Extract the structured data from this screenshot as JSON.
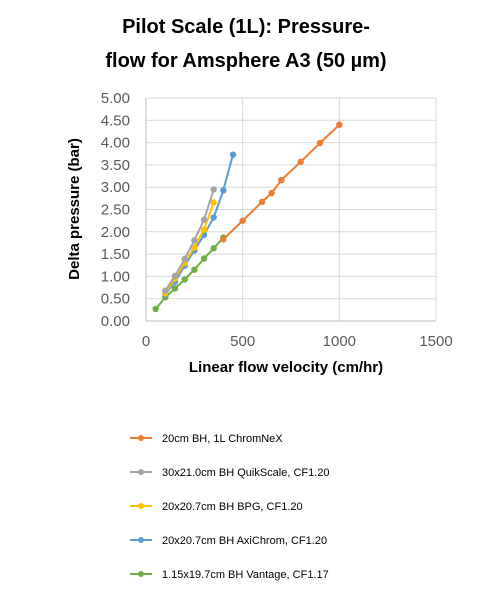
{
  "chart_data": {
    "type": "line",
    "title": [
      "Pilot Scale (1L): Pressure-",
      "flow for Amsphere A3 (50 µm)"
    ],
    "xlabel": "Linear flow velocity (cm/hr)",
    "ylabel": "Delta pressure (bar)",
    "xlim": [
      0,
      1500
    ],
    "ylim": [
      0,
      5
    ],
    "xticks": [
      "0",
      "500",
      "1000",
      "1500"
    ],
    "yticks": [
      "0.00",
      "0.50",
      "1.00",
      "1.50",
      "2.00",
      "2.50",
      "3.00",
      "3.50",
      "4.00",
      "4.50",
      "5.00"
    ],
    "grid": true,
    "legend_position": "bottom",
    "series": [
      {
        "name": "20cm BH, 1L ChromNeX",
        "color": "#ED7D31",
        "points": [
          [
            400,
            1.83
          ],
          [
            500,
            2.25
          ],
          [
            600,
            2.67
          ],
          [
            650,
            2.87
          ],
          [
            700,
            3.16
          ],
          [
            800,
            3.57
          ],
          [
            900,
            3.99
          ],
          [
            1000,
            4.4
          ]
        ]
      },
      {
        "name": "30x21.0cm BH QuikScale, CF1.20",
        "color": "#A5A5A5",
        "points": [
          [
            100,
            0.68
          ],
          [
            150,
            1.01
          ],
          [
            200,
            1.39
          ],
          [
            250,
            1.81
          ],
          [
            300,
            2.27
          ],
          [
            350,
            2.95
          ]
        ]
      },
      {
        "name": "20x20.7cm BH BPG, CF1.20",
        "color": "#FFC000",
        "points": [
          [
            100,
            0.62
          ],
          [
            150,
            0.95
          ],
          [
            200,
            1.3
          ],
          [
            250,
            1.65
          ],
          [
            300,
            2.05
          ],
          [
            350,
            2.66
          ]
        ]
      },
      {
        "name": "20x20.7cm BH AxiChrom, CF1.20",
        "color": "#5B9BD5",
        "points": [
          [
            100,
            0.6
          ],
          [
            150,
            0.88
          ],
          [
            200,
            1.24
          ],
          [
            250,
            1.58
          ],
          [
            300,
            1.93
          ],
          [
            350,
            2.32
          ],
          [
            400,
            2.93
          ],
          [
            450,
            3.73
          ]
        ]
      },
      {
        "name": "1.15x19.7cm BH Vantage, CF1.17",
        "color": "#70AD47",
        "points": [
          [
            50,
            0.27
          ],
          [
            100,
            0.53
          ],
          [
            150,
            0.73
          ],
          [
            200,
            0.93
          ],
          [
            250,
            1.15
          ],
          [
            300,
            1.4
          ],
          [
            350,
            1.63
          ],
          [
            400,
            1.87
          ]
        ]
      }
    ]
  }
}
